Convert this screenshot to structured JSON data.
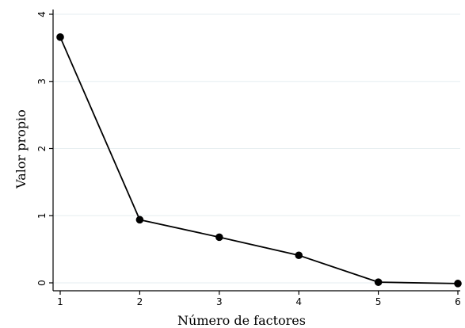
{
  "chart_data": {
    "type": "line",
    "title": "",
    "xlabel": "Número de factores",
    "ylabel": "Valor propio",
    "x": [
      1,
      2,
      3,
      4,
      5,
      6
    ],
    "series": [
      {
        "values": [
          3.66,
          0.94,
          0.68,
          0.41,
          0.01,
          -0.01
        ]
      }
    ],
    "xlim": [
      1,
      6
    ],
    "ylim": [
      0,
      4
    ],
    "xticks": [
      "1",
      "2",
      "3",
      "4",
      "5",
      "6"
    ],
    "yticks": [
      "0",
      "1",
      "2",
      "3",
      "4"
    ],
    "grid": "horizontal",
    "legend": "none",
    "colors": {
      "line": "#000000",
      "marker": "#000000",
      "grid": "#e6eef0",
      "axis": "#000000"
    }
  }
}
